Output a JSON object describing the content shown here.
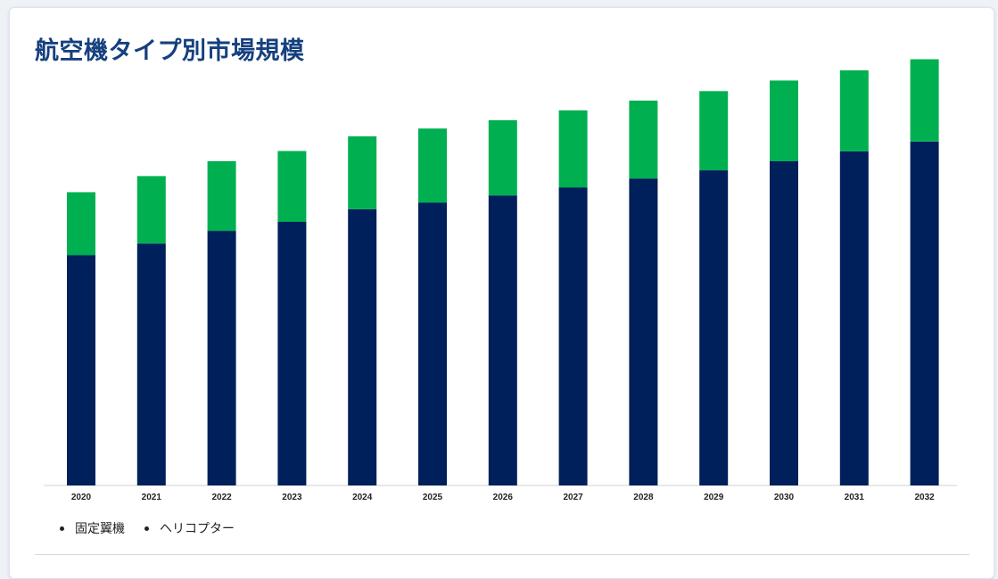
{
  "page": {
    "title": "航空機タイプ別市場規模"
  },
  "chart_data": {
    "type": "bar",
    "stacked": true,
    "categories": [
      "2020",
      "2021",
      "2022",
      "2023",
      "2024",
      "2025",
      "2026",
      "2027",
      "2028",
      "2029",
      "2030",
      "2031",
      "2032"
    ],
    "series": [
      {
        "name": "固定翼機",
        "color": "#00205b",
        "values": [
          58.5,
          61.5,
          64.7,
          67.0,
          70.2,
          71.9,
          73.7,
          75.7,
          78.0,
          80.1,
          82.4,
          84.9,
          87.4
        ]
      },
      {
        "name": "ヘリコプター",
        "color": "#00b050",
        "values": [
          16.0,
          17.1,
          17.7,
          18.0,
          18.5,
          18.8,
          19.1,
          19.6,
          19.8,
          20.1,
          20.5,
          20.6,
          20.9
        ]
      }
    ],
    "ylim": [
      0,
      110
    ],
    "grid": false,
    "legend_position": "bottom-left",
    "xlabel": "",
    "ylabel": ""
  },
  "legend": {
    "items": [
      {
        "label": "固定翼機"
      },
      {
        "label": "ヘリコプター"
      }
    ]
  }
}
